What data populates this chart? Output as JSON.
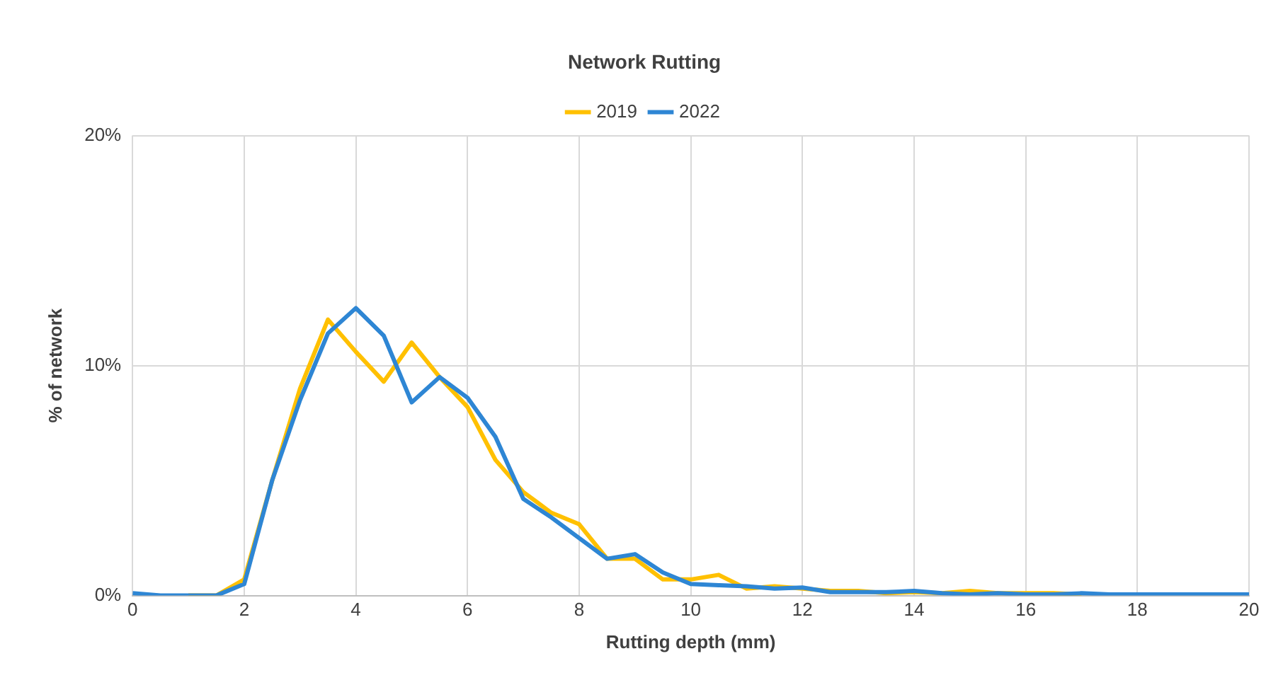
{
  "chart_data": {
    "type": "line",
    "title": "Network Rutting",
    "xlabel": "Rutting depth (mm)",
    "ylabel": "% of network",
    "x": [
      0,
      0.5,
      1,
      1.5,
      2,
      2.5,
      3,
      3.5,
      4,
      4.5,
      5,
      5.5,
      6,
      6.5,
      7,
      7.5,
      8,
      8.5,
      9,
      9.5,
      10,
      10.5,
      11,
      11.5,
      12,
      12.5,
      13,
      13.5,
      14,
      14.5,
      15,
      15.5,
      16,
      16.5,
      17,
      17.5,
      18,
      18.5,
      19,
      19.5,
      20
    ],
    "series": [
      {
        "name": "2019",
        "color": "#ffc000",
        "values": [
          null,
          null,
          0,
          0,
          0.7,
          5,
          9,
          12,
          10.6,
          9.3,
          11,
          9.5,
          8.2,
          5.9,
          4.5,
          3.6,
          3.1,
          1.6,
          1.6,
          0.7,
          0.7,
          0.9,
          0.3,
          0.4,
          0.3,
          0.2,
          0.2,
          0.1,
          0.15,
          0.1,
          0.2,
          0.1,
          0.1,
          0.1,
          0.05,
          null,
          null,
          null,
          null,
          null,
          null
        ]
      },
      {
        "name": "2022",
        "color": "#2e86d4",
        "values": [
          0.1,
          0,
          0,
          0,
          0.5,
          5,
          8.5,
          11.4,
          12.5,
          11.3,
          8.4,
          9.5,
          8.6,
          6.9,
          4.2,
          3.4,
          2.5,
          1.6,
          1.8,
          1,
          0.5,
          0.45,
          0.4,
          0.3,
          0.35,
          0.15,
          0.15,
          0.15,
          0.2,
          0.1,
          0.05,
          0.1,
          0.05,
          0.05,
          0.1,
          0.05,
          0.05,
          0.05,
          0.05,
          0.05,
          0.05
        ]
      }
    ],
    "xlim": [
      0,
      20
    ],
    "xticks": [
      0,
      2,
      4,
      6,
      8,
      10,
      12,
      14,
      16,
      18,
      20
    ],
    "ylim": [
      0,
      20
    ],
    "yticks": [
      {
        "value": 0,
        "label": "0%"
      },
      {
        "value": 10,
        "label": "10%"
      },
      {
        "value": 20,
        "label": "20%"
      }
    ],
    "grid": true,
    "legend": "top",
    "marker": "none",
    "line_style": "solid"
  }
}
